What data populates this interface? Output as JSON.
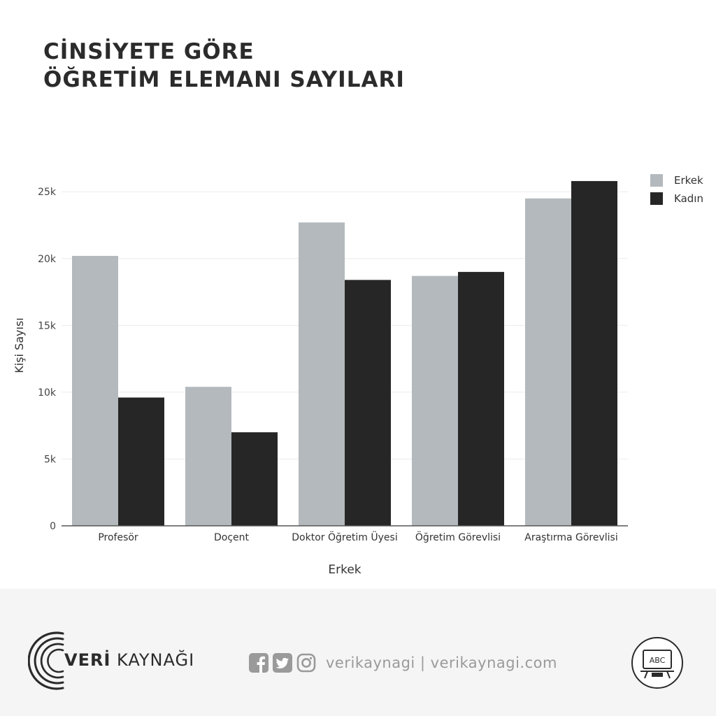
{
  "header": {
    "title_line1": "CİNSİYETE GÖRE",
    "title_line2": "ÖĞRETİM ELEMANI SAYILARI"
  },
  "chart_data": {
    "type": "bar",
    "categories": [
      "Profesör",
      "Doçent",
      "Doktor Öğretim Üyesi",
      "Öğretim Görevlisi",
      "Araştırma Görevlisi"
    ],
    "series": [
      {
        "name": "Erkek",
        "color": "#b3b9bd",
        "values": [
          20200,
          10400,
          22700,
          18700,
          24500
        ]
      },
      {
        "name": "Kadın",
        "color": "#262626",
        "values": [
          9600,
          7000,
          18400,
          19000,
          25800
        ]
      }
    ],
    "ylim": [
      0,
      27000
    ],
    "yticks": [
      0,
      5000,
      10000,
      15000,
      20000,
      25000
    ],
    "ytick_labels": [
      "0",
      "5k",
      "10k",
      "15k",
      "20k",
      "25k"
    ],
    "xlabel": "Erkek",
    "ylabel": "Kişi Sayısı",
    "grid": true,
    "legend_position": "top-right",
    "gridline_color": "#ececec",
    "axis_color": "#555555"
  },
  "footer": {
    "brand_bold": "VERİ",
    "brand_light": " KAYNAĞI",
    "social_text": "verikaynagi | verikaynagi.com",
    "social_icons": [
      "facebook-icon",
      "twitter-icon",
      "instagram-icon"
    ],
    "badge_text": "ABC",
    "badge_icon": "chalkboard-icon",
    "icon_color": "#9a9a9a"
  }
}
